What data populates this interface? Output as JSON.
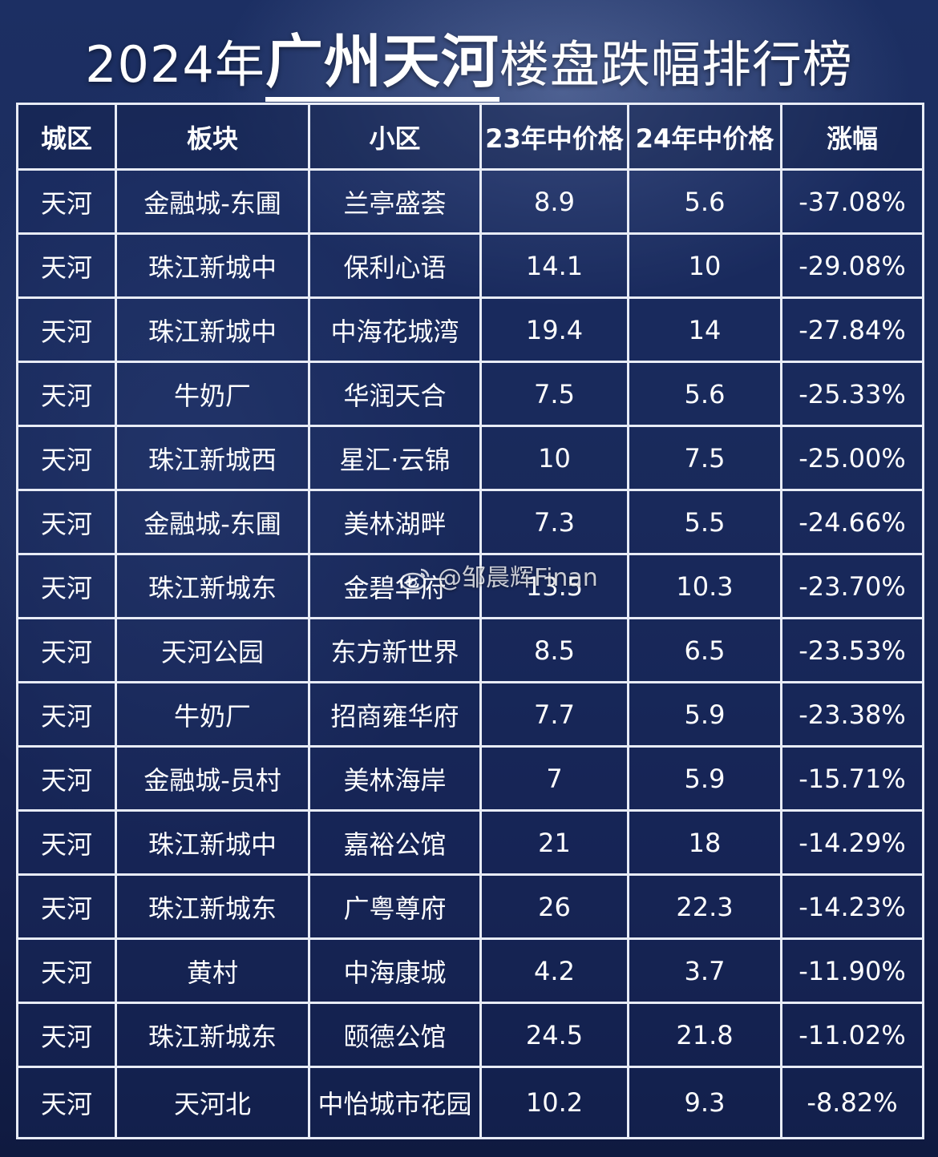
{
  "title": {
    "prefix": "2024年",
    "highlight": "广州天河",
    "suffix": "楼盘跌幅排行榜"
  },
  "table": {
    "headers": [
      "城区",
      "板块",
      "小区",
      "23年中价格",
      "24年中价格",
      "涨幅"
    ],
    "rows": [
      [
        "天河",
        "金融城-东圃",
        "兰亭盛荟",
        "8.9",
        "5.6",
        "-37.08%"
      ],
      [
        "天河",
        "珠江新城中",
        "保利心语",
        "14.1",
        "10",
        "-29.08%"
      ],
      [
        "天河",
        "珠江新城中",
        "中海花城湾",
        "19.4",
        "14",
        "-27.84%"
      ],
      [
        "天河",
        "牛奶厂",
        "华润天合",
        "7.5",
        "5.6",
        "-25.33%"
      ],
      [
        "天河",
        "珠江新城西",
        "星汇·云锦",
        "10",
        "7.5",
        "-25.00%"
      ],
      [
        "天河",
        "金融城-东圃",
        "美林湖畔",
        "7.3",
        "5.5",
        "-24.66%"
      ],
      [
        "天河",
        "珠江新城东",
        "金碧华府",
        "13.5",
        "10.3",
        "-23.70%"
      ],
      [
        "天河",
        "天河公园",
        "东方新世界",
        "8.5",
        "6.5",
        "-23.53%"
      ],
      [
        "天河",
        "牛奶厂",
        "招商雍华府",
        "7.7",
        "5.9",
        "-23.38%"
      ],
      [
        "天河",
        "金融城-员村",
        "美林海岸",
        "7",
        "5.9",
        "-15.71%"
      ],
      [
        "天河",
        "珠江新城中",
        "嘉裕公馆",
        "21",
        "18",
        "-14.29%"
      ],
      [
        "天河",
        "珠江新城东",
        "广粤尊府",
        "26",
        "22.3",
        "-14.23%"
      ],
      [
        "天河",
        "黄村",
        "中海康城",
        "4.2",
        "3.7",
        "-11.90%"
      ],
      [
        "天河",
        "珠江新城东",
        "颐德公馆",
        "24.5",
        "21.8",
        "-11.02%"
      ],
      [
        "天河",
        "天河北",
        "中怡城市花园",
        "10.2",
        "9.3",
        "-8.82%"
      ]
    ]
  },
  "watermark": {
    "icon": "weibo-icon",
    "text": "@邹晨辉Finan"
  }
}
